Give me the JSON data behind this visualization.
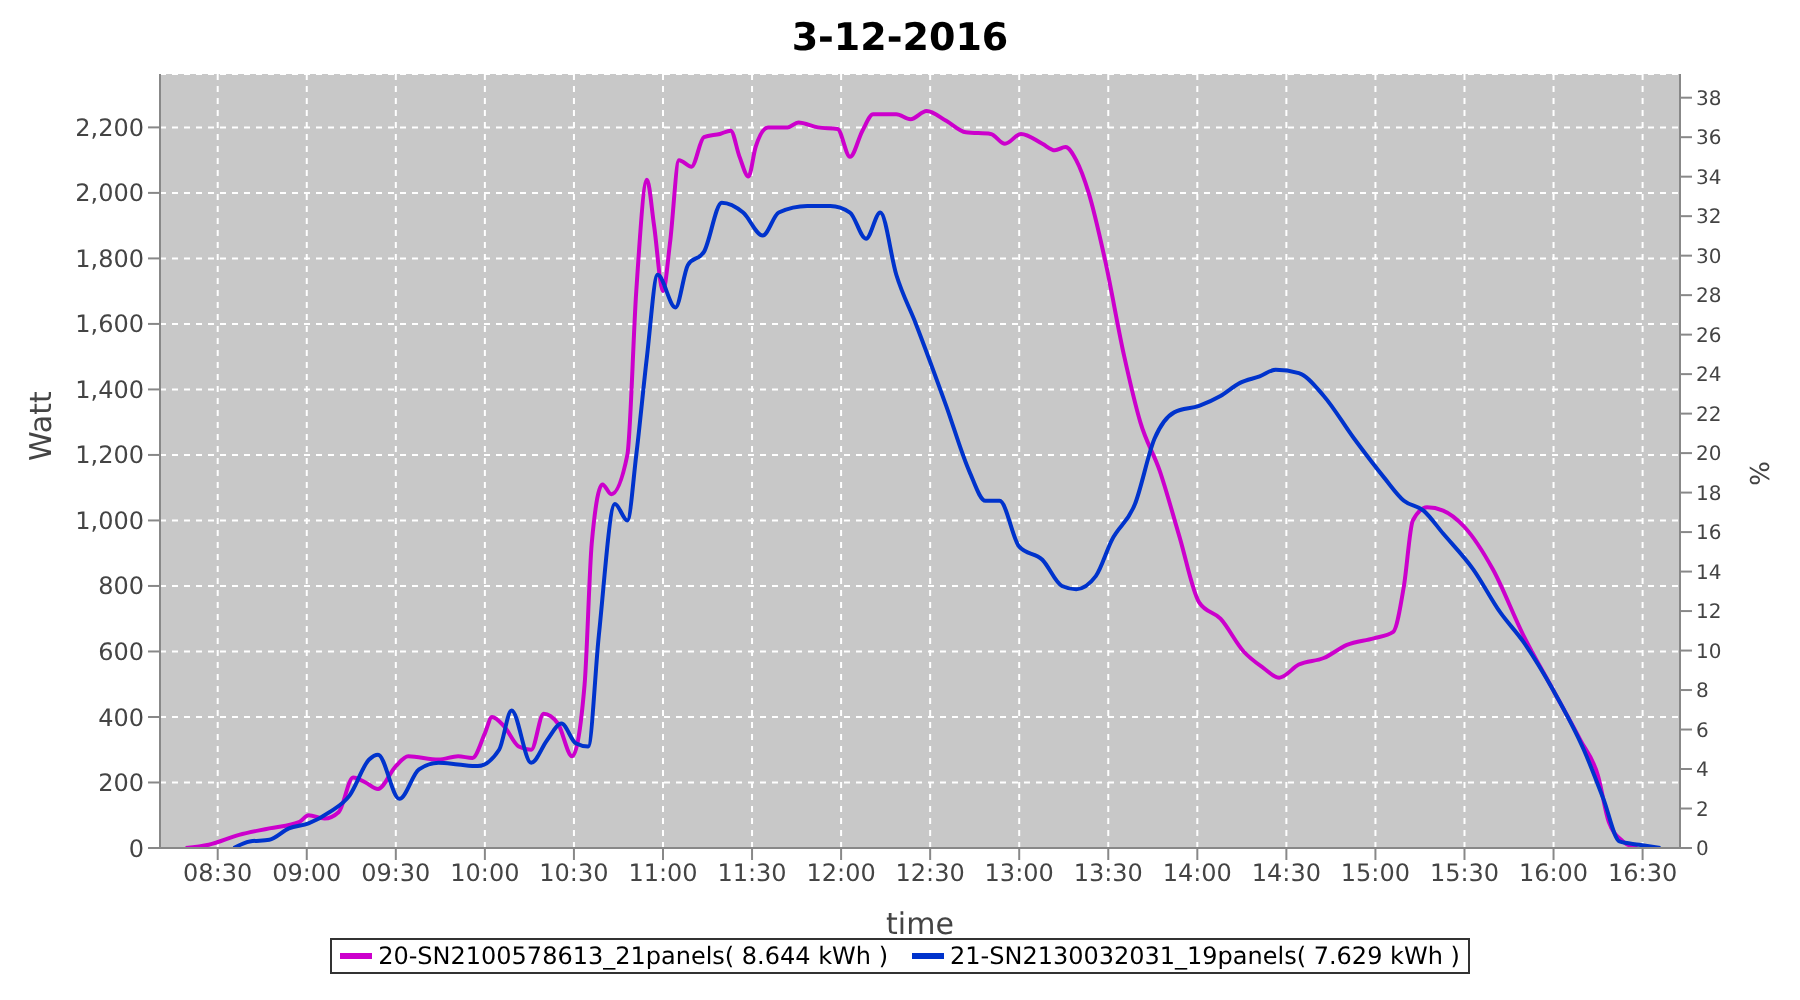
{
  "chart_data": {
    "type": "line",
    "title": "3-12-2016",
    "xlabel": "time",
    "ylabel": "Watt",
    "y2label": "%",
    "xlim": [
      8.176,
      16.71
    ],
    "xticks": [
      {
        "value": 8.5,
        "label": "08:30"
      },
      {
        "value": 9,
        "label": "09:00"
      },
      {
        "value": 9.5,
        "label": "09:30"
      },
      {
        "value": 10,
        "label": "10:00"
      },
      {
        "value": 10.5,
        "label": "10:30"
      },
      {
        "value": 11,
        "label": "11:00"
      },
      {
        "value": 11.5,
        "label": "11:30"
      },
      {
        "value": 12,
        "label": "12:00"
      },
      {
        "value": 12.5,
        "label": "12:30"
      },
      {
        "value": 13,
        "label": "13:00"
      },
      {
        "value": 13.5,
        "label": "13:30"
      },
      {
        "value": 14,
        "label": "14:00"
      },
      {
        "value": 14.5,
        "label": "14:30"
      },
      {
        "value": 15,
        "label": "15:00"
      },
      {
        "value": 15.5,
        "label": "15:30"
      },
      {
        "value": 16,
        "label": "16:00"
      },
      {
        "value": 16.5,
        "label": "16:30"
      }
    ],
    "ylim": [
      0,
      2363
    ],
    "yticks": [
      0,
      200,
      400,
      600,
      800,
      {
        "value": 1000,
        "label": "1,000"
      },
      {
        "value": 1200,
        "label": "1,200"
      },
      {
        "value": 1400,
        "label": "1,400"
      },
      {
        "value": 1600,
        "label": "1,600"
      },
      {
        "value": 1800,
        "label": "1,800"
      },
      {
        "value": 2000,
        "label": "2,000"
      },
      {
        "value": 2200,
        "label": "2,200"
      }
    ],
    "y2lim": [
      0,
      39.2
    ],
    "y2ticks": [
      0,
      2,
      4,
      6,
      8,
      10,
      12,
      14,
      16,
      18,
      20,
      22,
      24,
      26,
      28,
      30,
      32,
      34,
      36,
      38
    ],
    "grid": true,
    "legend": "bottom",
    "marker": "none",
    "line_style": "solid",
    "series": [
      {
        "name": "20-SN2100578613_21panels( 8.644 kWh )",
        "color": "#cc00cc",
        "x": [
          8.32,
          8.45,
          8.62,
          8.79,
          8.96,
          9.01,
          9.1,
          9.18,
          9.26,
          9.33,
          9.4,
          9.5,
          9.57,
          9.74,
          9.85,
          9.93,
          10.0,
          10.04,
          10.11,
          10.19,
          10.26,
          10.33,
          10.41,
          10.49,
          10.56,
          10.6,
          10.66,
          10.71,
          10.8,
          10.85,
          10.91,
          10.95,
          11.0,
          11.04,
          11.09,
          11.16,
          11.23,
          11.32,
          11.38,
          11.43,
          11.48,
          11.52,
          11.59,
          11.7,
          11.76,
          11.87,
          11.98,
          12.05,
          12.12,
          12.18,
          12.31,
          12.39,
          12.48,
          12.59,
          12.7,
          12.84,
          12.92,
          13.01,
          13.13,
          13.2,
          13.26,
          13.32,
          13.39,
          13.48,
          13.59,
          13.68,
          13.79,
          13.9,
          14.01,
          14.13,
          14.26,
          14.37,
          14.46,
          14.57,
          14.71,
          14.84,
          14.99,
          15.1,
          15.16,
          15.21,
          15.29,
          15.38,
          15.5,
          15.66,
          15.83,
          16.0,
          16.15,
          16.25,
          16.31,
          16.39,
          16.47
        ],
        "values": [
          0,
          10,
          40,
          60,
          80,
          100,
          90,
          110,
          215,
          200,
          180,
          250,
          280,
          270,
          280,
          275,
          350,
          400,
          370,
          310,
          300,
          410,
          380,
          280,
          500,
          930,
          1110,
          1080,
          1200,
          1700,
          2040,
          1900,
          1700,
          1850,
          2100,
          2080,
          2170,
          2180,
          2190,
          2110,
          2050,
          2140,
          2200,
          2200,
          2215,
          2200,
          2195,
          2110,
          2190,
          2240,
          2240,
          2225,
          2250,
          2220,
          2185,
          2180,
          2150,
          2180,
          2150,
          2130,
          2140,
          2100,
          2000,
          1800,
          1500,
          1300,
          1150,
          950,
          750,
          700,
          600,
          550,
          520,
          560,
          580,
          620,
          640,
          660,
          800,
          1000,
          1040,
          1030,
          980,
          850,
          650,
          480,
          330,
          220,
          80,
          20,
          0
        ]
      },
      {
        "name": "21-SN2130032031_19panels( 7.629 kWh )",
        "color": "#0033cc",
        "x": [
          8.59,
          8.68,
          8.79,
          8.9,
          9.01,
          9.13,
          9.24,
          9.35,
          9.4,
          9.52,
          9.63,
          9.74,
          9.85,
          9.96,
          10.08,
          10.15,
          10.26,
          10.35,
          10.43,
          10.51,
          10.58,
          10.64,
          10.73,
          10.8,
          10.85,
          10.91,
          10.97,
          11.07,
          11.14,
          11.23,
          11.33,
          11.45,
          11.56,
          11.65,
          11.81,
          11.94,
          12.05,
          12.14,
          12.22,
          12.31,
          12.42,
          12.59,
          12.72,
          12.81,
          12.89,
          13.0,
          13.13,
          13.24,
          13.32,
          13.43,
          13.52,
          13.65,
          13.76,
          13.87,
          14.01,
          14.13,
          14.24,
          14.35,
          14.44,
          14.57,
          14.71,
          14.88,
          15.05,
          15.16,
          15.27,
          15.38,
          15.55,
          15.7,
          15.83,
          16.0,
          16.17,
          16.28,
          16.37,
          16.48,
          16.6
        ],
        "values": [
          0,
          20,
          25,
          60,
          75,
          110,
          160,
          270,
          285,
          150,
          240,
          260,
          255,
          250,
          300,
          420,
          260,
          330,
          380,
          320,
          310,
          650,
          1050,
          1000,
          1200,
          1500,
          1750,
          1650,
          1780,
          1820,
          1970,
          1940,
          1870,
          1940,
          1960,
          1960,
          1940,
          1860,
          1940,
          1750,
          1600,
          1350,
          1150,
          1060,
          1060,
          920,
          880,
          800,
          790,
          830,
          940,
          1050,
          1250,
          1330,
          1350,
          1380,
          1420,
          1440,
          1460,
          1450,
          1380,
          1250,
          1130,
          1060,
          1030,
          960,
          850,
          720,
          630,
          480,
          300,
          150,
          20,
          10,
          0
        ]
      }
    ]
  }
}
